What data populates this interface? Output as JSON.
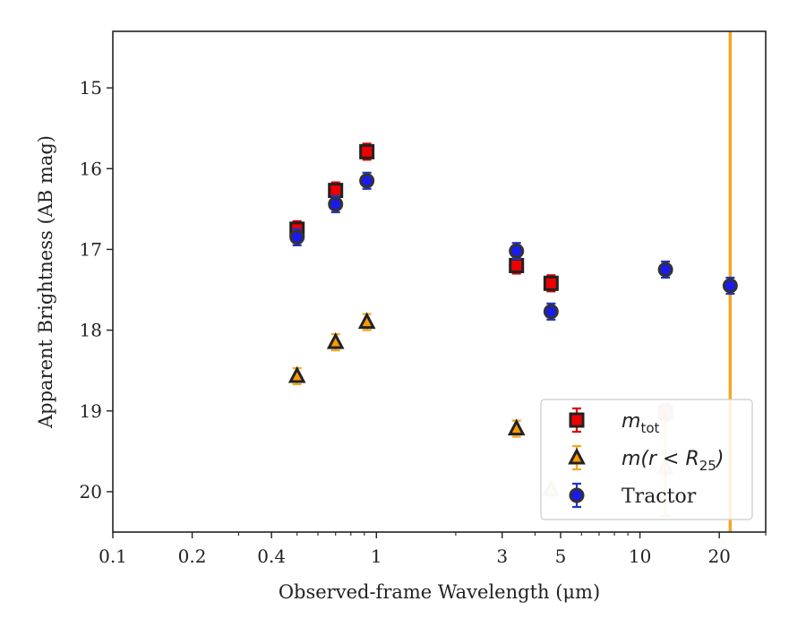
{
  "chart_data": {
    "type": "scatter",
    "xscale": "log",
    "xlim": [
      0.1,
      30
    ],
    "ylim": [
      20.5,
      14.3
    ],
    "y_inverted": true,
    "xlabel": "Observed-frame Wavelength (μm)",
    "ylabel": "Apparent Brightness (AB mag)",
    "x_ticks": [
      {
        "value": 0.1,
        "label": "0.1"
      },
      {
        "value": 0.2,
        "label": "0.2"
      },
      {
        "value": 0.4,
        "label": "0.4"
      },
      {
        "value": 1,
        "label": "1"
      },
      {
        "value": 3,
        "label": "3"
      },
      {
        "value": 5,
        "label": "5"
      },
      {
        "value": 10,
        "label": "10"
      },
      {
        "value": 20,
        "label": "20"
      }
    ],
    "y_ticks": [
      {
        "value": 15,
        "label": "15"
      },
      {
        "value": 16,
        "label": "16"
      },
      {
        "value": 17,
        "label": "17"
      },
      {
        "value": 18,
        "label": "18"
      },
      {
        "value": 19,
        "label": "19"
      },
      {
        "value": 20,
        "label": "20"
      }
    ],
    "vertical_line": {
      "x": 22,
      "color": "#f5a623"
    },
    "legend_position": "lower-right",
    "series": [
      {
        "name": "m_tot",
        "name_base": "m",
        "name_sub": "tot",
        "marker": "square",
        "fill": "#ee0000",
        "edge": "#222222",
        "error_color": "#dd0000",
        "x": [
          0.5,
          0.7,
          0.92,
          3.4,
          4.6,
          12.5
        ],
        "y": [
          16.75,
          16.27,
          15.79,
          17.2,
          17.42,
          19.02
        ],
        "faded": [
          false,
          false,
          false,
          false,
          false,
          true
        ]
      },
      {
        "name": "m(r<R_25)",
        "name_base": "m(r < R",
        "name_sub": "25",
        "name_tail": ")",
        "marker": "triangle",
        "fill": "#ff9900",
        "edge": "#222222",
        "error_color": "#f5a623",
        "x": [
          0.5,
          0.7,
          0.92,
          3.4,
          4.6,
          12.5
        ],
        "y": [
          18.57,
          18.15,
          17.9,
          19.22,
          19.97,
          19.7
        ],
        "faded": [
          false,
          false,
          false,
          false,
          true,
          true
        ]
      },
      {
        "name": "Tractor",
        "marker": "circle",
        "fill": "#1a1aee",
        "edge": "#333333",
        "error_color": "#2233cc",
        "x": [
          0.5,
          0.7,
          0.92,
          3.4,
          4.6,
          12.5,
          22
        ],
        "y": [
          16.85,
          16.44,
          16.15,
          17.02,
          17.77,
          17.25,
          17.45
        ],
        "faded": [
          false,
          false,
          false,
          false,
          false,
          false,
          false
        ]
      }
    ],
    "legend": [
      {
        "base": "m",
        "sub": "tot",
        "tail": ""
      },
      {
        "base": "m(r < R",
        "sub": "25",
        "tail": ")"
      },
      {
        "base": "Tractor",
        "sub": "",
        "tail": ""
      }
    ]
  }
}
